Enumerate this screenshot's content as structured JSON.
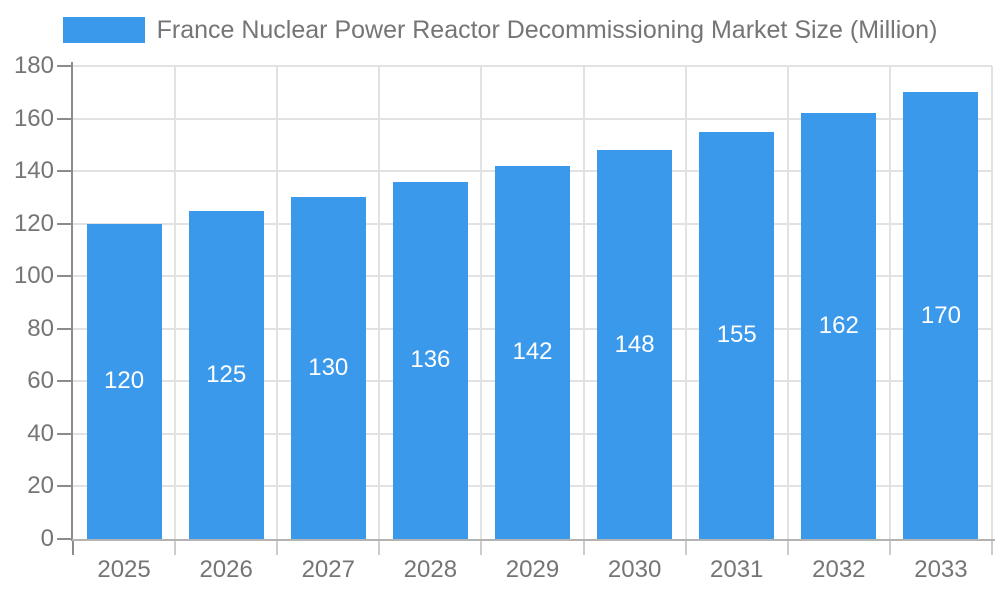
{
  "chart_data": {
    "type": "bar",
    "title": "France Nuclear Power Reactor Decommissioning Market Size (Million)",
    "categories": [
      "2025",
      "2026",
      "2027",
      "2028",
      "2029",
      "2030",
      "2031",
      "2032",
      "2033"
    ],
    "values": [
      120,
      125,
      130,
      136,
      142,
      148,
      155,
      162,
      170
    ],
    "xlabel": "",
    "ylabel": "",
    "ylim": [
      0,
      180
    ],
    "y_tick_interval": 20,
    "y_tick_labels": [
      "0",
      "20",
      "40",
      "60",
      "80",
      "100",
      "120",
      "140",
      "160",
      "180"
    ],
    "grid": true,
    "legend_position": "top",
    "bar_label_position": "inside-center"
  },
  "colors": {
    "bar": "#3B99EC",
    "bar_label": "#ffffff",
    "grid": "#e2e2e2",
    "y_axis": "#8c8c8c",
    "x_axis": "#b3b3b3",
    "x_tick": "#cccccc",
    "text": "#757575"
  }
}
